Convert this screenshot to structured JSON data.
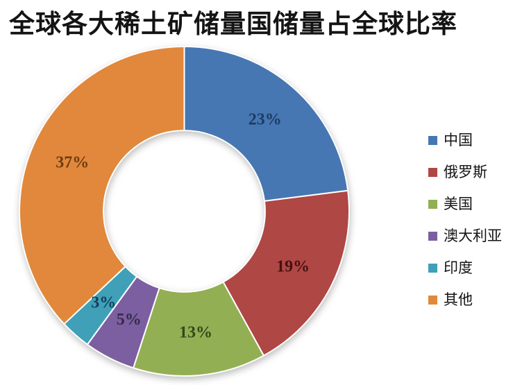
{
  "title": "全球各大稀土矿储量国储量占全球比率",
  "chart_data": {
    "type": "pie",
    "subtype": "donut",
    "title": "全球各大稀土矿储量国储量占全球比率",
    "unit": "%",
    "start_angle_deg": 0,
    "direction": "clockwise",
    "inner_radius_ratio": 0.49,
    "legend_position": "right",
    "background": "#ffffff",
    "separator_color": "#ffffff",
    "categories": [
      "中国",
      "俄罗斯",
      "美国",
      "澳大利亚",
      "印度",
      "其他"
    ],
    "values": [
      23,
      19,
      13,
      5,
      3,
      37
    ],
    "slices": [
      {
        "key": "china",
        "label": "中国",
        "value": 23,
        "display": "23%",
        "color": "#4677B2",
        "label_color": "#1C3C63"
      },
      {
        "key": "russia",
        "label": "俄罗斯",
        "value": 19,
        "display": "19%",
        "color": "#AF4744",
        "label_color": "#441110"
      },
      {
        "key": "usa",
        "label": "美国",
        "value": 13,
        "display": "13%",
        "color": "#93AF53",
        "label_color": "#2F4A1D"
      },
      {
        "key": "australia",
        "label": "澳大利亚",
        "value": 5,
        "display": "5%",
        "color": "#7C5FA0",
        "label_color": "#352A4D"
      },
      {
        "key": "india",
        "label": "印度",
        "value": 3,
        "display": "3%",
        "color": "#3FA0B8",
        "label_color": "#16405C"
      },
      {
        "key": "others",
        "label": "其他",
        "value": 37,
        "display": "37%",
        "color": "#E1883C",
        "label_color": "#6E3B12"
      }
    ]
  }
}
